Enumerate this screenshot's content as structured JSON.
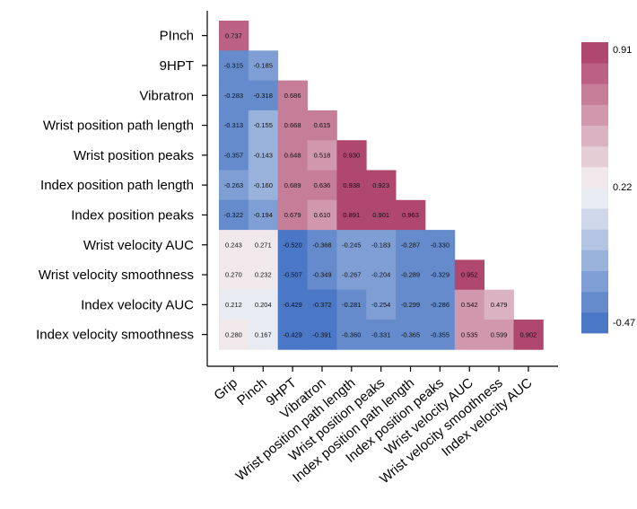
{
  "chart_data": {
    "type": "heatmap",
    "title": "",
    "row_labels": [
      "PInch",
      "9HPT",
      "Vibratron",
      "Wrist position path length",
      "Wrist position peaks",
      "Index position path length",
      "Index position peaks",
      "Wrist velocity AUC",
      "Wrist velocity smoothness",
      "Index velocity AUC",
      "Index velocity smoothness"
    ],
    "col_labels": [
      "Grip",
      "Pinch",
      "9HPT",
      "Vibratron",
      "Wrist position path length",
      "Wrist position peaks",
      "Index position path length",
      "Index position peaks",
      "Wrist velocity AUC",
      "Wrist velocity smoothness",
      "Index velocity AUC"
    ],
    "values": [
      [
        "0.737"
      ],
      [
        "-0.315",
        "-0.185"
      ],
      [
        "-0.283",
        "-0.318",
        "0.686"
      ],
      [
        "-0.313",
        "-0.155",
        "0.668",
        "0.615"
      ],
      [
        "-0.357",
        "-0.143",
        "0.648",
        "0.518",
        "0.930"
      ],
      [
        "-0.263",
        "-0.160",
        "0.689",
        "0.636",
        "0.938",
        "0.923"
      ],
      [
        "-0.322",
        "-0.194",
        "0.679",
        "0.610",
        "0.891",
        "0.901",
        "0.963"
      ],
      [
        "0.243",
        "0.271",
        "-0.520",
        "-0.368",
        "-0.245",
        "-0.183",
        "-0.287",
        "-0.330"
      ],
      [
        "0.270",
        "0.232",
        "-0.507",
        "-0.349",
        "-0.267",
        "-0.204",
        "-0.289",
        "-0.329",
        "0.952"
      ],
      [
        "0.212",
        "0.204",
        "-0.429",
        "-0.372",
        "-0.281",
        "-0.254",
        "-0.299",
        "-0.286",
        "0.542",
        "0.479"
      ],
      [
        "0.280",
        "0.167",
        "-0.429",
        "-0.391",
        "-0.360",
        "-0.331",
        "-0.365",
        "-0.355",
        "0.535",
        "0.599",
        "0.902"
      ]
    ],
    "colorbar": {
      "min": -0.47,
      "mid": 0.22,
      "max": 0.91,
      "tick_labels": [
        "0.91",
        "0.22",
        "-0.47"
      ],
      "low_color": "#4b78c6",
      "mid_color": "#f5f5f5",
      "high_color": "#b0476f",
      "steps": 14
    }
  }
}
